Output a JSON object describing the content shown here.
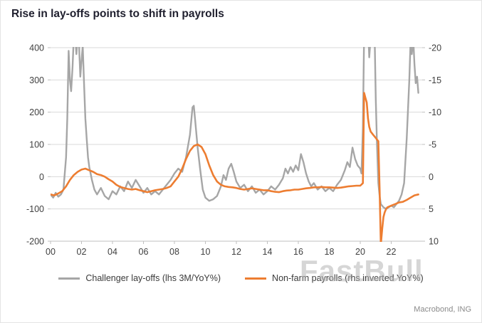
{
  "source": "Macrobond, ING",
  "watermark": "FastBull",
  "colors": {
    "grid": "#d9d9d9",
    "axis": "#bfbfbf",
    "tick_text": "#404040",
    "gray_series": "#a6a6a6",
    "orange_series": "#ed7d31"
  },
  "chart_data": {
    "type": "line",
    "title": "Rise in lay-offs points to shift in payrolls",
    "grid": "horizontal",
    "legend_position": "bottom",
    "x_domain": [
      2000,
      2024
    ],
    "x_ticks": [
      {
        "v": 2000,
        "label": "00"
      },
      {
        "v": 2002,
        "label": "02"
      },
      {
        "v": 2004,
        "label": "04"
      },
      {
        "v": 2006,
        "label": "06"
      },
      {
        "v": 2008,
        "label": "08"
      },
      {
        "v": 2010,
        "label": "10"
      },
      {
        "v": 2012,
        "label": "12"
      },
      {
        "v": 2014,
        "label": "14"
      },
      {
        "v": 2016,
        "label": "16"
      },
      {
        "v": 2018,
        "label": "18"
      },
      {
        "v": 2020,
        "label": "20"
      },
      {
        "v": 2022,
        "label": "22"
      }
    ],
    "left_axis": {
      "range": [
        400,
        -200
      ],
      "ticks": [
        400,
        300,
        200,
        100,
        0,
        -100,
        -200
      ]
    },
    "right_axis": {
      "range": [
        -20,
        10
      ],
      "ticks": [
        -20,
        -15,
        -10,
        -5,
        0,
        5,
        10
      ],
      "inverted": true
    },
    "series": [
      {
        "name": "Challenger lay-offs (lhs 3M/YoY%)",
        "axis": "left",
        "color": "#a6a6a6",
        "width": 2.4,
        "points": [
          [
            2000.0,
            -55
          ],
          [
            2000.17,
            -65
          ],
          [
            2000.33,
            -50
          ],
          [
            2000.5,
            -62
          ],
          [
            2000.67,
            -55
          ],
          [
            2000.83,
            -40
          ],
          [
            2001.0,
            60
          ],
          [
            2001.08,
            180
          ],
          [
            2001.17,
            390
          ],
          [
            2001.25,
            300
          ],
          [
            2001.33,
            265
          ],
          [
            2001.42,
            340
          ],
          [
            2001.5,
            430
          ],
          [
            2001.58,
            445
          ],
          [
            2001.67,
            380
          ],
          [
            2001.75,
            435
          ],
          [
            2001.83,
            420
          ],
          [
            2001.92,
            310
          ],
          [
            2002.0,
            360
          ],
          [
            2002.08,
            405
          ],
          [
            2002.17,
            280
          ],
          [
            2002.25,
            180
          ],
          [
            2002.33,
            120
          ],
          [
            2002.42,
            60
          ],
          [
            2002.5,
            30
          ],
          [
            2002.67,
            -10
          ],
          [
            2002.83,
            -40
          ],
          [
            2003.0,
            -55
          ],
          [
            2003.25,
            -35
          ],
          [
            2003.5,
            -60
          ],
          [
            2003.75,
            -70
          ],
          [
            2004.0,
            -45
          ],
          [
            2004.25,
            -55
          ],
          [
            2004.5,
            -30
          ],
          [
            2004.75,
            -45
          ],
          [
            2005.0,
            -15
          ],
          [
            2005.25,
            -35
          ],
          [
            2005.5,
            -10
          ],
          [
            2005.75,
            -30
          ],
          [
            2006.0,
            -50
          ],
          [
            2006.25,
            -35
          ],
          [
            2006.5,
            -55
          ],
          [
            2006.75,
            -45
          ],
          [
            2007.0,
            -55
          ],
          [
            2007.25,
            -40
          ],
          [
            2007.5,
            -25
          ],
          [
            2007.75,
            -10
          ],
          [
            2008.0,
            10
          ],
          [
            2008.25,
            25
          ],
          [
            2008.5,
            15
          ],
          [
            2008.75,
            60
          ],
          [
            2009.0,
            130
          ],
          [
            2009.17,
            215
          ],
          [
            2009.25,
            220
          ],
          [
            2009.33,
            180
          ],
          [
            2009.5,
            90
          ],
          [
            2009.67,
            20
          ],
          [
            2009.83,
            -40
          ],
          [
            2010.0,
            -65
          ],
          [
            2010.25,
            -75
          ],
          [
            2010.5,
            -70
          ],
          [
            2010.75,
            -60
          ],
          [
            2011.0,
            -30
          ],
          [
            2011.17,
            5
          ],
          [
            2011.33,
            -10
          ],
          [
            2011.5,
            25
          ],
          [
            2011.67,
            40
          ],
          [
            2011.83,
            15
          ],
          [
            2012.0,
            -15
          ],
          [
            2012.25,
            -35
          ],
          [
            2012.5,
            -25
          ],
          [
            2012.75,
            -45
          ],
          [
            2013.0,
            -30
          ],
          [
            2013.25,
            -50
          ],
          [
            2013.5,
            -40
          ],
          [
            2013.75,
            -55
          ],
          [
            2014.0,
            -45
          ],
          [
            2014.25,
            -30
          ],
          [
            2014.5,
            -40
          ],
          [
            2014.75,
            -25
          ],
          [
            2015.0,
            -5
          ],
          [
            2015.17,
            25
          ],
          [
            2015.33,
            10
          ],
          [
            2015.5,
            30
          ],
          [
            2015.67,
            15
          ],
          [
            2015.83,
            35
          ],
          [
            2016.0,
            20
          ],
          [
            2016.17,
            70
          ],
          [
            2016.33,
            45
          ],
          [
            2016.5,
            10
          ],
          [
            2016.67,
            -15
          ],
          [
            2016.83,
            -30
          ],
          [
            2017.0,
            -20
          ],
          [
            2017.25,
            -40
          ],
          [
            2017.5,
            -30
          ],
          [
            2017.75,
            -45
          ],
          [
            2018.0,
            -35
          ],
          [
            2018.25,
            -45
          ],
          [
            2018.5,
            -25
          ],
          [
            2018.75,
            -10
          ],
          [
            2019.0,
            20
          ],
          [
            2019.17,
            45
          ],
          [
            2019.33,
            30
          ],
          [
            2019.5,
            90
          ],
          [
            2019.67,
            55
          ],
          [
            2019.83,
            35
          ],
          [
            2020.0,
            25
          ],
          [
            2020.08,
            10
          ],
          [
            2020.17,
            150
          ],
          [
            2020.25,
            440
          ],
          [
            2020.33,
            500
          ],
          [
            2020.5,
            480
          ],
          [
            2020.58,
            370
          ],
          [
            2020.67,
            430
          ],
          [
            2020.75,
            500
          ],
          [
            2020.92,
            460
          ],
          [
            2021.0,
            240
          ],
          [
            2021.08,
            100
          ],
          [
            2021.17,
            -20
          ],
          [
            2021.25,
            -60
          ],
          [
            2021.33,
            -85
          ],
          [
            2021.5,
            -95
          ],
          [
            2021.67,
            -100
          ],
          [
            2021.83,
            -95
          ],
          [
            2022.0,
            -90
          ],
          [
            2022.17,
            -95
          ],
          [
            2022.33,
            -85
          ],
          [
            2022.5,
            -75
          ],
          [
            2022.67,
            -55
          ],
          [
            2022.83,
            -20
          ],
          [
            2023.0,
            120
          ],
          [
            2023.17,
            300
          ],
          [
            2023.25,
            420
          ],
          [
            2023.33,
            380
          ],
          [
            2023.42,
            430
          ],
          [
            2023.5,
            350
          ],
          [
            2023.58,
            290
          ],
          [
            2023.67,
            310
          ],
          [
            2023.75,
            260
          ]
        ]
      },
      {
        "name": "Non-farm payrolls (rhs inverted YoY%)",
        "axis": "right",
        "color": "#ed7d31",
        "width": 2.6,
        "points": [
          [
            2000.0,
            2.75
          ],
          [
            2000.25,
            2.9
          ],
          [
            2000.5,
            2.6
          ],
          [
            2000.75,
            2.25
          ],
          [
            2001.0,
            1.5
          ],
          [
            2001.25,
            0.5
          ],
          [
            2001.5,
            -0.25
          ],
          [
            2001.75,
            -0.75
          ],
          [
            2002.0,
            -1.1
          ],
          [
            2002.25,
            -1.25
          ],
          [
            2002.5,
            -1.0
          ],
          [
            2002.75,
            -0.75
          ],
          [
            2003.0,
            -0.4
          ],
          [
            2003.25,
            -0.25
          ],
          [
            2003.5,
            0
          ],
          [
            2003.75,
            0.4
          ],
          [
            2004.0,
            0.75
          ],
          [
            2004.25,
            1.25
          ],
          [
            2004.5,
            1.6
          ],
          [
            2004.75,
            1.75
          ],
          [
            2005.0,
            1.9
          ],
          [
            2005.25,
            2.0
          ],
          [
            2005.5,
            1.9
          ],
          [
            2005.75,
            2.1
          ],
          [
            2006.0,
            2.25
          ],
          [
            2006.25,
            2.4
          ],
          [
            2006.5,
            2.25
          ],
          [
            2006.75,
            2.1
          ],
          [
            2007.0,
            2.0
          ],
          [
            2007.25,
            1.9
          ],
          [
            2007.5,
            1.75
          ],
          [
            2007.75,
            1.5
          ],
          [
            2008.0,
            0.75
          ],
          [
            2008.25,
            0
          ],
          [
            2008.5,
            -1.25
          ],
          [
            2008.75,
            -2.75
          ],
          [
            2009.0,
            -4.0
          ],
          [
            2009.25,
            -4.75
          ],
          [
            2009.5,
            -5.0
          ],
          [
            2009.75,
            -4.6
          ],
          [
            2010.0,
            -3.5
          ],
          [
            2010.25,
            -1.75
          ],
          [
            2010.5,
            -0.25
          ],
          [
            2010.75,
            0.75
          ],
          [
            2011.0,
            1.25
          ],
          [
            2011.25,
            1.5
          ],
          [
            2011.5,
            1.6
          ],
          [
            2011.75,
            1.65
          ],
          [
            2012.0,
            1.75
          ],
          [
            2012.25,
            1.9
          ],
          [
            2012.5,
            2.0
          ],
          [
            2012.75,
            1.9
          ],
          [
            2013.0,
            1.8
          ],
          [
            2013.25,
            1.9
          ],
          [
            2013.5,
            2.0
          ],
          [
            2013.75,
            2.1
          ],
          [
            2014.0,
            2.1
          ],
          [
            2014.25,
            2.25
          ],
          [
            2014.5,
            2.35
          ],
          [
            2014.75,
            2.4
          ],
          [
            2015.0,
            2.25
          ],
          [
            2015.25,
            2.15
          ],
          [
            2015.5,
            2.1
          ],
          [
            2015.75,
            2.0
          ],
          [
            2016.0,
            2.0
          ],
          [
            2016.25,
            1.9
          ],
          [
            2016.5,
            1.8
          ],
          [
            2016.75,
            1.75
          ],
          [
            2017.0,
            1.65
          ],
          [
            2017.25,
            1.65
          ],
          [
            2017.5,
            1.6
          ],
          [
            2017.75,
            1.65
          ],
          [
            2018.0,
            1.65
          ],
          [
            2018.25,
            1.7
          ],
          [
            2018.5,
            1.75
          ],
          [
            2018.75,
            1.7
          ],
          [
            2019.0,
            1.6
          ],
          [
            2019.25,
            1.5
          ],
          [
            2019.5,
            1.45
          ],
          [
            2019.75,
            1.4
          ],
          [
            2020.0,
            1.4
          ],
          [
            2020.17,
            1.0
          ],
          [
            2020.25,
            -13.0
          ],
          [
            2020.33,
            -12.25
          ],
          [
            2020.42,
            -11.5
          ],
          [
            2020.5,
            -9.0
          ],
          [
            2020.58,
            -7.75
          ],
          [
            2020.67,
            -7.0
          ],
          [
            2020.75,
            -6.75
          ],
          [
            2020.83,
            -6.5
          ],
          [
            2020.92,
            -6.25
          ],
          [
            2021.0,
            -6.0
          ],
          [
            2021.08,
            -5.75
          ],
          [
            2021.17,
            -5.5
          ],
          [
            2021.25,
            2.0
          ],
          [
            2021.33,
            10.5
          ],
          [
            2021.42,
            8.0
          ],
          [
            2021.5,
            6.25
          ],
          [
            2021.58,
            5.5
          ],
          [
            2021.67,
            5.0
          ],
          [
            2021.75,
            4.75
          ],
          [
            2022.0,
            4.5
          ],
          [
            2022.25,
            4.25
          ],
          [
            2022.5,
            4.0
          ],
          [
            2022.75,
            3.9
          ],
          [
            2023.0,
            3.6
          ],
          [
            2023.25,
            3.25
          ],
          [
            2023.5,
            2.9
          ],
          [
            2023.75,
            2.75
          ]
        ]
      }
    ]
  }
}
